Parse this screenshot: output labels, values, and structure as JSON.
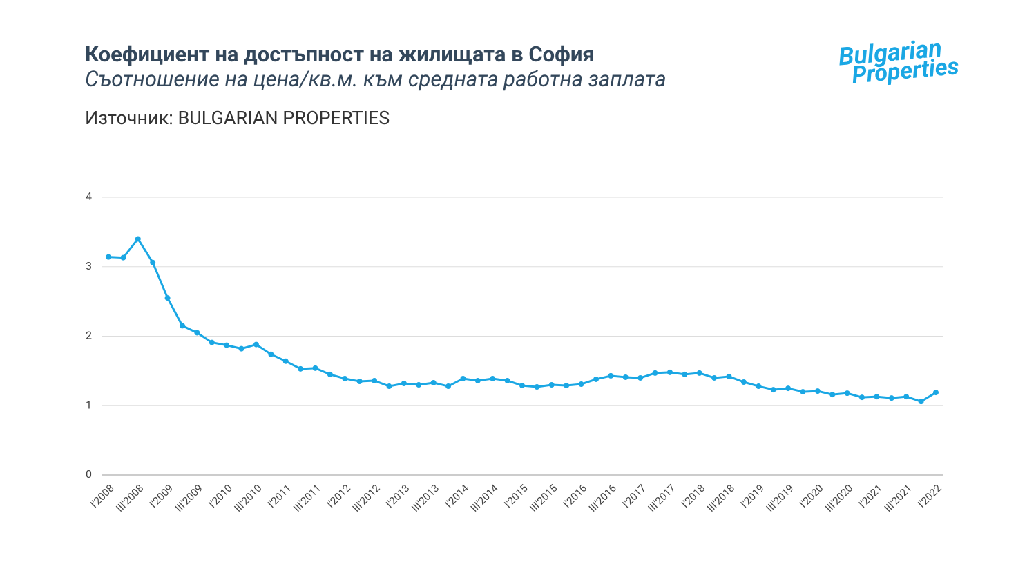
{
  "chart_data": {
    "type": "line",
    "title": "Коефициент на достъпност на жилищата в София",
    "subtitle": "Съотношение на цена/кв.м. към средната работна заплата",
    "source": "Източник: BULGARIAN PROPERTIES",
    "logo": [
      "Bulgarian",
      "Properties"
    ],
    "categories": [
      "I'2008",
      null,
      "III'2008",
      null,
      "I'2009",
      null,
      "III'2009",
      null,
      "I'2010",
      null,
      "III'2010",
      null,
      "I'2011",
      null,
      "III'2011",
      null,
      "I'2012",
      null,
      "III'2012",
      null,
      "I'2013",
      null,
      "III'2013",
      null,
      "I'2014",
      null,
      "III'2014",
      null,
      "I'2015",
      null,
      "III'2015",
      null,
      "I'2016",
      null,
      "III'2016",
      null,
      "I'2017",
      null,
      "III'2017",
      null,
      "I'2018",
      null,
      "III'2018",
      null,
      "I'2019",
      null,
      "III'2019",
      null,
      "I'2020",
      null,
      "III'2020",
      null,
      "I'2021",
      null,
      "III'2021",
      null,
      "I'2022"
    ],
    "series": [
      {
        "name": "Коефициент",
        "color": "#1aa7e4",
        "values": [
          3.14,
          3.13,
          3.4,
          3.06,
          2.55,
          2.15,
          2.05,
          1.91,
          1.87,
          1.82,
          1.88,
          1.74,
          1.64,
          1.53,
          1.54,
          1.45,
          1.39,
          1.35,
          1.36,
          1.28,
          1.32,
          1.3,
          1.33,
          1.28,
          1.39,
          1.36,
          1.39,
          1.36,
          1.29,
          1.27,
          1.3,
          1.29,
          1.31,
          1.38,
          1.43,
          1.41,
          1.4,
          1.47,
          1.48,
          1.45,
          1.47,
          1.4,
          1.42,
          1.34,
          1.28,
          1.23,
          1.25,
          1.2,
          1.21,
          1.16,
          1.18,
          1.12,
          1.13,
          1.11,
          1.13,
          1.06,
          1.19
        ]
      }
    ],
    "ylim": [
      0,
      4
    ],
    "yticks": [
      0,
      1,
      2,
      3,
      4
    ],
    "grid": true
  }
}
